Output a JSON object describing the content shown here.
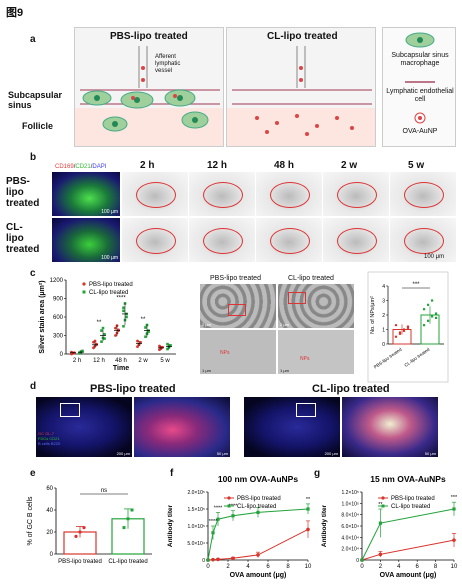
{
  "figure_label": "图9",
  "panels": {
    "a": {
      "label": "a",
      "pbs_title": "PBS-lipo treated",
      "cl_title": "CL-lipo treated",
      "afferent_label": "Afferent lymphatic vessel",
      "subcapsular_label": "Subcapsular sinus",
      "follicle_label": "Follicle",
      "legend": [
        "Subcapsular sinus macrophage",
        "Lymphatic endothelial cell",
        "OVA-AuNP"
      ]
    },
    "b": {
      "label": "b",
      "stain_legend": [
        "CD169",
        "CD21",
        "DAPI"
      ],
      "stain_legend_colors": [
        "#e23c3c",
        "#2fbf2f",
        "#3c3cff"
      ],
      "timepoints": [
        "2 h",
        "12 h",
        "48 h",
        "2 w",
        "5 w"
      ],
      "rows": [
        "PBS-lipo treated",
        "CL-lipo treated"
      ],
      "scalebar_small": "100 µm",
      "scalebar_main": "100 μm"
    },
    "c": {
      "label": "c",
      "ylabel": "Silver stain area (μm²)",
      "xlabel": "Time",
      "yticks": [
        "0",
        "300",
        "600",
        "900",
        "1200"
      ],
      "legend": [
        "PBS-lipo treated",
        "CL-lipo treated"
      ],
      "sig": [
        "**",
        "****",
        "**"
      ],
      "em_titles": [
        "PBS-lipo treated",
        "CL-lipo treated"
      ],
      "em_scale": "2 μm",
      "em_zoom_scale": "1 μm",
      "em_annotation": "NPs",
      "np_ylabel": "No. of NPs/μm²",
      "np_yticks": [
        "0",
        "1",
        "2",
        "3",
        "4"
      ],
      "np_xticks": [
        "PBS-lipo treated",
        "CL-lipo treated"
      ],
      "np_sig": "***"
    },
    "d": {
      "label": "d",
      "pbs_title": "PBS-lipo treated",
      "cl_title": "CL-lipo treated",
      "legend": [
        "GC GL-7",
        "FDCs CD21",
        "B cells B220"
      ],
      "legend_colors": [
        "#e23c3c",
        "#2fbf2f",
        "#5a6cff"
      ],
      "scalebar_big": "200 μm",
      "scalebar_zoom": "50 μm"
    },
    "e": {
      "label": "e",
      "ylabel": "% of GC B cells",
      "yticks": [
        "0",
        "20",
        "40",
        "60"
      ],
      "sig": "ns"
    },
    "f": {
      "label": "f",
      "title": "100 nm OVA-AuNPs",
      "xlabel": "OVA amount (μg)",
      "ylabel": "Antibody titer",
      "xticks": [
        "0",
        "2",
        "4",
        "6",
        "8",
        "10"
      ],
      "yticks": [
        "0",
        "5.0×10⁴",
        "1.0×10⁵",
        "1.5×10⁵",
        "2.0×10⁵"
      ],
      "legend": [
        "PBS-lipo treated",
        "CL-lipo treated"
      ],
      "sig": [
        "****",
        "****",
        "****",
        "**"
      ]
    },
    "g": {
      "label": "g",
      "title": "15 nm OVA-AuNPs",
      "xlabel": "OVA amount (μg)",
      "ylabel": "Antibody titer",
      "xticks": [
        "0",
        "2",
        "4",
        "6",
        "8",
        "10"
      ],
      "yticks": [
        "0",
        "2.0×10⁴",
        "4.0×10⁴",
        "6.0×10⁴",
        "8.0×10⁴",
        "1.0×10⁵",
        "1.2×10⁵"
      ],
      "legend": [
        "PBS-lipo treated",
        "CL-lipo treated"
      ],
      "sig": [
        "**",
        "***"
      ]
    }
  },
  "colors": {
    "pbs": "#d8342b",
    "cl": "#22a33a"
  },
  "chart_data": [
    {
      "id": "c",
      "type": "scatter",
      "categories": [
        "2 h",
        "12 h",
        "48 h",
        "2 w",
        "5 w"
      ],
      "ylim": [
        0,
        1200
      ],
      "series": [
        {
          "name": "PBS-lipo treated",
          "mean": [
            20,
            150,
            380,
            170,
            100
          ],
          "err": [
            15,
            50,
            90,
            40,
            30
          ],
          "points": [
            [
              0,
              10,
              20,
              30,
              15
            ],
            [
              100,
              130,
              160,
              190,
              210,
              150
            ],
            [
              300,
              340,
              380,
              420,
              460,
              390
            ],
            [
              120,
              160,
              190,
              210,
              150
            ],
            [
              70,
              90,
              110,
              130,
              100
            ]
          ]
        },
        {
          "name": "CL-lipo treated",
          "mean": [
            30,
            300,
            650,
            380,
            120
          ],
          "err": [
            20,
            90,
            180,
            100,
            40
          ],
          "points": [
            [
              10,
              30,
              50,
              20,
              40
            ],
            [
              200,
              260,
              320,
              380,
              420,
              250
            ],
            [
              450,
              550,
              650,
              750,
              820,
              600,
              700
            ],
            [
              280,
              330,
              380,
              430,
              470,
              360
            ],
            [
              80,
              110,
              140,
              160,
              120
            ]
          ]
        }
      ]
    },
    {
      "id": "c-np",
      "type": "bar",
      "categories": [
        "PBS-lipo treated",
        "CL-lipo treated"
      ],
      "values": [
        1.0,
        2.0
      ],
      "err": [
        0.35,
        0.6
      ],
      "points": [
        [
          0.5,
          0.7,
          0.9,
          1.1,
          1.3,
          0.8,
          1.0,
          1.2
        ],
        [
          1.3,
          1.6,
          1.9,
          2.1,
          2.4,
          2.7,
          3.0,
          1.8
        ]
      ],
      "ylim": [
        0,
        4
      ]
    },
    {
      "id": "e",
      "type": "bar",
      "categories": [
        "PBS-lipo treated",
        "CL-lipo treated"
      ],
      "values": [
        20,
        32
      ],
      "err": [
        5,
        9
      ],
      "points": [
        [
          16,
          20,
          24
        ],
        [
          24,
          32,
          40
        ]
      ],
      "ylim": [
        0,
        60
      ]
    },
    {
      "id": "f",
      "type": "line",
      "x": [
        0,
        0.5,
        1,
        2.5,
        5,
        10
      ],
      "ylim": [
        0,
        200000
      ],
      "xlim": [
        0,
        10
      ],
      "series": [
        {
          "name": "PBS-lipo treated",
          "values": [
            0,
            1000,
            2000,
            5000,
            15000,
            90000
          ],
          "err": [
            0,
            1000,
            1500,
            3000,
            8000,
            25000
          ]
        },
        {
          "name": "CL-lipo treated",
          "values": [
            0,
            80000,
            120000,
            130000,
            140000,
            150000
          ],
          "err": [
            0,
            20000,
            20000,
            15000,
            15000,
            15000
          ]
        }
      ]
    },
    {
      "id": "g",
      "type": "line",
      "x": [
        0,
        2,
        10
      ],
      "ylim": [
        0,
        120000
      ],
      "xlim": [
        0,
        10
      ],
      "series": [
        {
          "name": "PBS-lipo treated",
          "values": [
            0,
            10000,
            35000
          ],
          "err": [
            0,
            5000,
            12000
          ]
        },
        {
          "name": "CL-lipo treated",
          "values": [
            0,
            65000,
            90000
          ],
          "err": [
            0,
            25000,
            12000
          ]
        }
      ]
    }
  ]
}
